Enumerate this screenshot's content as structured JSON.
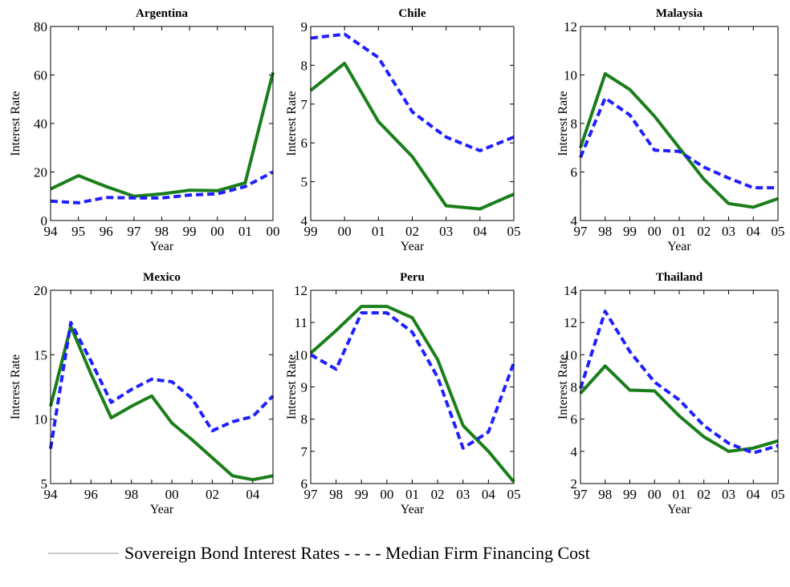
{
  "chart_data": [
    {
      "type": "line",
      "title": "Argentina",
      "xlabel": "Year",
      "ylabel": "Interest Rate",
      "categories": [
        "94",
        "95",
        "96",
        "97",
        "98",
        "99",
        "00",
        "01",
        "00"
      ],
      "ylim": [
        0,
        80
      ],
      "yticks": [
        0,
        20,
        40,
        60,
        80
      ],
      "series": [
        {
          "color": "#1a7f1a",
          "line_style": "solid",
          "values": [
            13,
            18.5,
            14,
            10,
            11,
            12.5,
            12.3,
            15.5,
            61
          ]
        },
        {
          "color": "#1f1fff",
          "line_style": "dashed",
          "values": [
            8,
            7.3,
            9.5,
            9.3,
            9.3,
            10.5,
            11,
            14,
            20
          ]
        }
      ]
    },
    {
      "type": "line",
      "title": "Chile",
      "xlabel": "Year",
      "ylabel": "Interest Rate",
      "categories": [
        "99",
        "00",
        "01",
        "02",
        "03",
        "04",
        "05"
      ],
      "ylim": [
        4,
        9
      ],
      "yticks": [
        4,
        5,
        6,
        7,
        8,
        9
      ],
      "series": [
        {
          "color": "#1a7f1a",
          "line_style": "solid",
          "values": [
            7.35,
            8.05,
            6.55,
            5.65,
            4.38,
            4.3,
            4.68
          ]
        },
        {
          "color": "#1f1fff",
          "line_style": "dashed",
          "values": [
            8.7,
            8.8,
            8.2,
            6.8,
            6.15,
            5.8,
            6.15
          ]
        }
      ]
    },
    {
      "type": "line",
      "title": "Malaysia",
      "xlabel": "Year",
      "ylabel": "Interest Rate",
      "categories": [
        "97",
        "98",
        "99",
        "00",
        "01",
        "02",
        "03",
        "04",
        "05"
      ],
      "ylim": [
        4,
        12
      ],
      "yticks": [
        4,
        6,
        8,
        10,
        12
      ],
      "series": [
        {
          "color": "#1a7f1a",
          "line_style": "solid",
          "values": [
            7,
            10.05,
            9.4,
            8.3,
            7.0,
            5.7,
            4.7,
            4.55,
            4.9
          ]
        },
        {
          "color": "#1f1fff",
          "line_style": "dashed",
          "values": [
            6.6,
            9.05,
            8.35,
            6.9,
            6.85,
            6.2,
            5.75,
            5.35,
            5.35
          ]
        }
      ]
    },
    {
      "type": "line",
      "title": "Mexico",
      "xlabel": "Year",
      "ylabel": "Interest Rate",
      "categories": [
        "94",
        null,
        "96",
        null,
        "98",
        null,
        "00",
        null,
        "02",
        null,
        "04",
        null
      ],
      "ylim": [
        5,
        20
      ],
      "yticks": [
        5,
        10,
        15,
        20
      ],
      "series": [
        {
          "color": "#1a7f1a",
          "line_style": "solid",
          "values": [
            11,
            17.2,
            13.5,
            10.1,
            11,
            11.8,
            9.7,
            8.4,
            7.0,
            5.6,
            5.3,
            5.6
          ]
        },
        {
          "color": "#1f1fff",
          "line_style": "dashed",
          "values": [
            7.7,
            17.5,
            14.5,
            11.3,
            12.3,
            13.1,
            12.9,
            11.6,
            9.1,
            9.8,
            10.2,
            11.8
          ]
        }
      ]
    },
    {
      "type": "line",
      "title": "Peru",
      "xlabel": "Year",
      "ylabel": "Interest Rate",
      "categories": [
        "97",
        "98",
        "99",
        "00",
        "01",
        "02",
        "03",
        "04",
        "05"
      ],
      "ylim": [
        6,
        12
      ],
      "yticks": [
        6,
        7,
        8,
        9,
        10,
        11,
        12
      ],
      "series": [
        {
          "color": "#1a7f1a",
          "line_style": "solid",
          "values": [
            10.05,
            10.75,
            11.5,
            11.5,
            11.15,
            9.85,
            7.8,
            7.0,
            6.05
          ]
        },
        {
          "color": "#1f1fff",
          "line_style": "dashed",
          "values": [
            10,
            9.55,
            11.3,
            11.3,
            10.7,
            9.3,
            7.1,
            7.6,
            9.75
          ]
        }
      ]
    },
    {
      "type": "line",
      "title": "Thailand",
      "xlabel": "Year",
      "ylabel": "Interest Rate",
      "categories": [
        "97",
        "98",
        "99",
        "00",
        "01",
        "02",
        "03",
        "04",
        "05"
      ],
      "ylim": [
        2,
        14
      ],
      "yticks": [
        2,
        4,
        6,
        8,
        10,
        12,
        14
      ],
      "series": [
        {
          "color": "#1a7f1a",
          "line_style": "solid",
          "values": [
            7.6,
            9.3,
            7.8,
            7.75,
            6.2,
            4.9,
            4.0,
            4.2,
            4.65
          ]
        },
        {
          "color": "#1f1fff",
          "line_style": "dashed",
          "values": [
            7.9,
            12.7,
            10.2,
            8.3,
            7.2,
            5.6,
            4.5,
            3.9,
            4.35
          ]
        }
      ]
    }
  ],
  "caption": "Sovereign Bond Interest Rates - - - - Median Firm Financing Cost"
}
